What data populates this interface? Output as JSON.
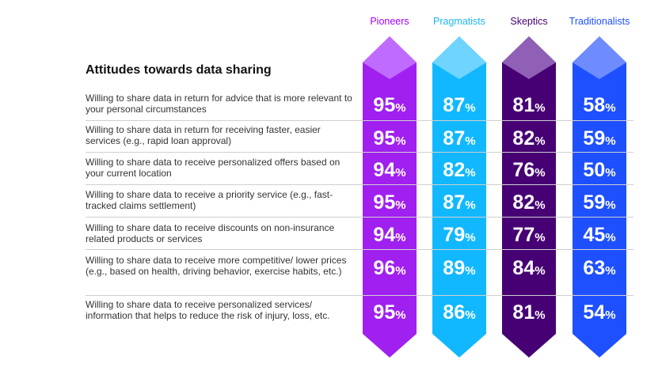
{
  "chart_data": {
    "type": "table",
    "title": "Attitudes towards data sharing",
    "columns": [
      "Pioneers",
      "Pragmatists",
      "Skeptics",
      "Traditionalists"
    ],
    "column_colors": [
      "#a020f0",
      "#12b8ff",
      "#460073",
      "#1e50ff"
    ],
    "header_colors": [
      "#a100ff",
      "#1eb7f0",
      "#460073",
      "#1e50ff"
    ],
    "cap_colors": [
      "#c06bff",
      "#6fd4ff",
      "#8f60b5",
      "#6f8cff"
    ],
    "rows": [
      {
        "label": "Willing to share data in return for advice that is more relevant to your personal circumstances",
        "values": [
          95,
          87,
          81,
          58
        ]
      },
      {
        "label": "Willing to share data in return for receiving faster, easier services (e.g., rapid loan approval)",
        "values": [
          95,
          87,
          82,
          59
        ]
      },
      {
        "label": "Willing to share data to receive personalized offers based on your current location",
        "values": [
          94,
          82,
          76,
          50
        ]
      },
      {
        "label": "Willing to share data to receive a priority service (e.g., fast-tracked claims settlement)",
        "values": [
          95,
          87,
          82,
          59
        ]
      },
      {
        "label": "Willing to share data to receive discounts on non-insurance related products or services",
        "values": [
          94,
          79,
          77,
          45
        ]
      },
      {
        "label": "Willing to share data to receive more competitive/ lower prices (e.g., based on health, driving behavior, exercise habits, etc.)",
        "values": [
          96,
          89,
          84,
          63
        ]
      },
      {
        "label": "Willing to share data to receive personalized services/ information that helps to reduce the risk of injury, loss, etc.",
        "values": [
          95,
          86,
          81,
          54
        ]
      }
    ],
    "value_suffix": "%"
  }
}
